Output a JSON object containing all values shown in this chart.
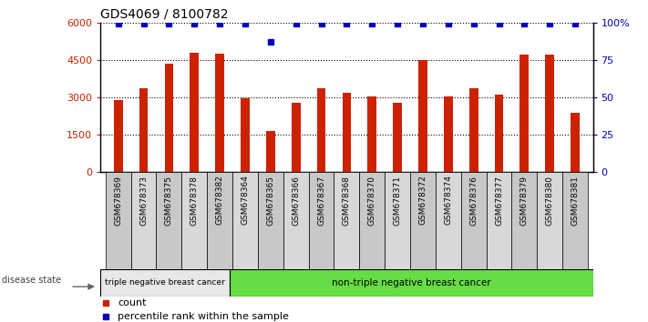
{
  "title": "GDS4069 / 8100782",
  "samples": [
    "GSM678369",
    "GSM678373",
    "GSM678375",
    "GSM678378",
    "GSM678382",
    "GSM678364",
    "GSM678365",
    "GSM678366",
    "GSM678367",
    "GSM678368",
    "GSM678370",
    "GSM678371",
    "GSM678372",
    "GSM678374",
    "GSM678376",
    "GSM678377",
    "GSM678379",
    "GSM678380",
    "GSM678381"
  ],
  "counts": [
    2900,
    3350,
    4350,
    4800,
    4750,
    2950,
    1650,
    2800,
    3350,
    3200,
    3050,
    2800,
    4500,
    3050,
    3350,
    3100,
    4700,
    4700,
    2400
  ],
  "percentile_ranks": [
    99,
    99,
    99,
    99,
    99,
    99,
    87,
    99,
    99,
    99,
    99,
    99,
    99,
    99,
    99,
    99,
    99,
    99,
    99
  ],
  "bar_color": "#cc2200",
  "dot_color": "#0000bb",
  "group1_label": "triple negative breast cancer",
  "group2_label": "non-triple negative breast cancer",
  "group1_count": 5,
  "group2_count": 14,
  "disease_state_label": "disease state",
  "legend_count_label": "count",
  "legend_percentile_label": "percentile rank within the sample",
  "ylim_left": [
    0,
    6000
  ],
  "ylim_right": [
    0,
    100
  ],
  "yticks_left": [
    0,
    1500,
    3000,
    4500,
    6000
  ],
  "ytick_labels_left": [
    "0",
    "1500",
    "3000",
    "4500",
    "6000"
  ],
  "yticks_right": [
    0,
    25,
    50,
    75,
    100
  ],
  "ytick_labels_right": [
    "0",
    "25",
    "50",
    "75",
    "100%"
  ],
  "group1_color": "#e8e8e8",
  "group2_color": "#66dd44",
  "tick_box_color": "#c8c8c8",
  "tick_box_color2": "#d8d8d8"
}
